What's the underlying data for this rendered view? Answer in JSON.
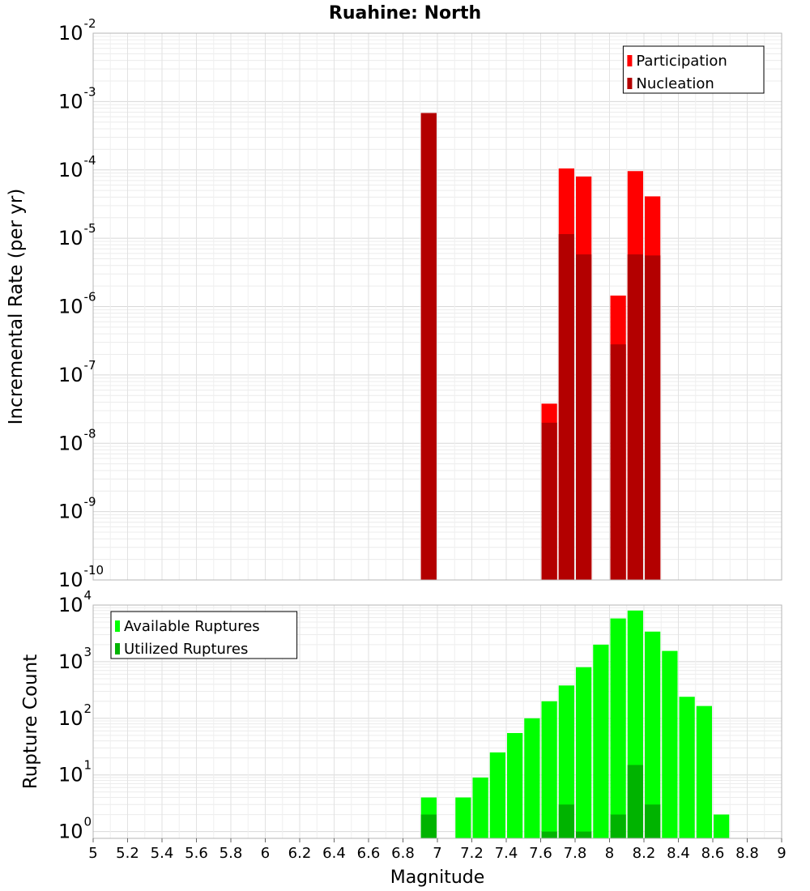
{
  "chart_data": [
    {
      "id": "incremental-rate",
      "type": "bar",
      "title": "Ruahine: North",
      "xlabel": "",
      "ylabel": "Incremental Rate (per yr)",
      "yscale": "log",
      "ylim_exp": [
        -10,
        -2
      ],
      "xlim": [
        5,
        9
      ],
      "bin_width": 0.1,
      "legend_position": "top-right",
      "y_ticks": [
        {
          "base": "10",
          "exp": "-2"
        },
        {
          "base": "10",
          "exp": "-3"
        },
        {
          "base": "10",
          "exp": "-4"
        },
        {
          "base": "10",
          "exp": "-5"
        },
        {
          "base": "10",
          "exp": "-6"
        },
        {
          "base": "10",
          "exp": "-7"
        },
        {
          "base": "10",
          "exp": "-8"
        },
        {
          "base": "10",
          "exp": "-9"
        },
        {
          "base": "10",
          "exp": "-10"
        }
      ],
      "series": [
        {
          "name": "Participation",
          "color": "#ff0000",
          "points": [
            {
              "x": 6.95,
              "y": 0.00068
            },
            {
              "x": 7.65,
              "y": 3.8e-08
            },
            {
              "x": 7.75,
              "y": 0.000105
            },
            {
              "x": 7.85,
              "y": 8e-05
            },
            {
              "x": 8.05,
              "y": 1.45e-06
            },
            {
              "x": 8.15,
              "y": 9.6e-05
            },
            {
              "x": 8.25,
              "y": 4.1e-05
            }
          ]
        },
        {
          "name": "Nucleation",
          "color": "#b30000",
          "points": [
            {
              "x": 6.95,
              "y": 0.00068
            },
            {
              "x": 7.65,
              "y": 2e-08
            },
            {
              "x": 7.75,
              "y": 1.15e-05
            },
            {
              "x": 7.85,
              "y": 5.8e-06
            },
            {
              "x": 8.05,
              "y": 2.8e-07
            },
            {
              "x": 8.15,
              "y": 5.8e-06
            },
            {
              "x": 8.25,
              "y": 5.6e-06
            }
          ]
        }
      ]
    },
    {
      "id": "rupture-count",
      "type": "bar",
      "title": "",
      "xlabel": "Magnitude",
      "ylabel": "Rupture Count",
      "yscale": "log",
      "ylim_exp": [
        -0.12,
        4
      ],
      "xlim": [
        5,
        9
      ],
      "bin_width": 0.1,
      "legend_position": "top-left",
      "x_ticks": [
        "5",
        "5.2",
        "5.4",
        "5.6",
        "5.8",
        "6",
        "6.2",
        "6.4",
        "6.6",
        "6.8",
        "7",
        "7.2",
        "7.4",
        "7.6",
        "7.8",
        "8",
        "8.2",
        "8.4",
        "8.6",
        "8.8",
        "9"
      ],
      "y_ticks": [
        {
          "base": "10",
          "exp": "4"
        },
        {
          "base": "10",
          "exp": "3"
        },
        {
          "base": "10",
          "exp": "2"
        },
        {
          "base": "10",
          "exp": "1"
        },
        {
          "base": "10",
          "exp": "0"
        }
      ],
      "series": [
        {
          "name": "Available Ruptures",
          "color": "#00ff00",
          "points": [
            {
              "x": 6.95,
              "y": 4
            },
            {
              "x": 7.15,
              "y": 4
            },
            {
              "x": 7.25,
              "y": 9
            },
            {
              "x": 7.35,
              "y": 25
            },
            {
              "x": 7.45,
              "y": 55
            },
            {
              "x": 7.55,
              "y": 100
            },
            {
              "x": 7.65,
              "y": 200
            },
            {
              "x": 7.75,
              "y": 380
            },
            {
              "x": 7.85,
              "y": 800
            },
            {
              "x": 7.95,
              "y": 2000
            },
            {
              "x": 8.05,
              "y": 5800
            },
            {
              "x": 8.15,
              "y": 8000
            },
            {
              "x": 8.25,
              "y": 3400
            },
            {
              "x": 8.35,
              "y": 1550
            },
            {
              "x": 8.45,
              "y": 240
            },
            {
              "x": 8.55,
              "y": 165
            },
            {
              "x": 8.65,
              "y": 2
            }
          ]
        },
        {
          "name": "Utilized Ruptures",
          "color": "#00b300",
          "points": [
            {
              "x": 6.95,
              "y": 2
            },
            {
              "x": 7.65,
              "y": 1
            },
            {
              "x": 7.75,
              "y": 3
            },
            {
              "x": 7.85,
              "y": 1
            },
            {
              "x": 8.05,
              "y": 2
            },
            {
              "x": 8.15,
              "y": 15
            },
            {
              "x": 8.25,
              "y": 3
            }
          ]
        }
      ]
    }
  ]
}
